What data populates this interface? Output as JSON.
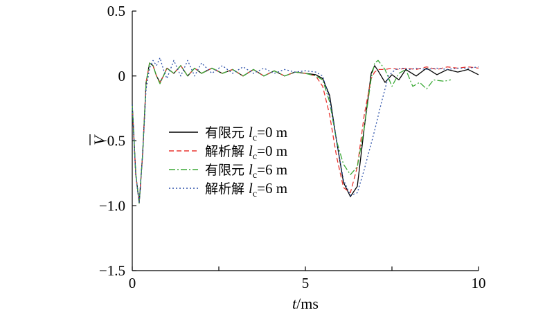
{
  "chart_data": {
    "type": "line",
    "xlabel_var": "t",
    "xlabel_unit": "/ms",
    "ylabel": "V",
    "xlim": [
      0,
      10
    ],
    "ylim": [
      -1.5,
      0.5
    ],
    "x_ticks": [
      0,
      5,
      10
    ],
    "x_tick_labels": [
      "0",
      "5",
      "10"
    ],
    "x_minor_ticks": [
      2.5,
      7.5
    ],
    "y_ticks": [
      0.5,
      0,
      -0.5,
      -1.0,
      -1.5
    ],
    "y_tick_labels": [
      "0.5",
      "0",
      "−0.5",
      "−1.0",
      "−1.5"
    ],
    "grid": false,
    "legend_position": "center",
    "series": [
      {
        "name": "有限元 lc=0 m",
        "legend_prefix": "有限元",
        "legend_var": "l",
        "legend_sub": "c",
        "legend_value": "=0 m",
        "color": "#000000",
        "dash": "",
        "x": [
          0,
          0.1,
          0.2,
          0.3,
          0.4,
          0.5,
          0.6,
          0.7,
          0.8,
          0.9,
          1.0,
          1.2,
          1.4,
          1.6,
          1.8,
          2.0,
          2.3,
          2.6,
          2.9,
          3.2,
          3.5,
          3.8,
          4.1,
          4.4,
          4.7,
          5.0,
          5.3,
          5.5,
          5.7,
          5.9,
          6.1,
          6.3,
          6.5,
          6.7,
          6.9,
          7.0,
          7.1,
          7.3,
          7.5,
          7.7,
          7.9,
          8.2,
          8.5,
          8.8,
          9.1,
          9.4,
          9.7,
          10.0
        ],
        "y": [
          -0.22,
          -0.75,
          -0.98,
          -0.6,
          -0.05,
          0.1,
          0.08,
          0.0,
          -0.05,
          0.0,
          0.06,
          0.02,
          0.08,
          0.0,
          0.06,
          0.02,
          0.06,
          0.02,
          0.05,
          0.0,
          0.05,
          0.0,
          0.04,
          0.0,
          0.03,
          0.02,
          0.01,
          -0.02,
          -0.15,
          -0.5,
          -0.82,
          -0.93,
          -0.85,
          -0.4,
          0.02,
          0.08,
          0.04,
          -0.05,
          0.01,
          -0.03,
          0.05,
          0.0,
          0.06,
          0.01,
          0.05,
          0.03,
          0.05,
          0.01
        ]
      },
      {
        "name": "解析解 lc=0 m",
        "legend_prefix": "解析解",
        "legend_var": "l",
        "legend_sub": "c",
        "legend_value": "=0 m",
        "color": "#e8342e",
        "dash": "7 4",
        "x": [
          0,
          0.1,
          0.2,
          0.3,
          0.4,
          0.5,
          0.6,
          0.7,
          0.8,
          0.9,
          1.0,
          1.2,
          1.4,
          1.6,
          1.8,
          2.0,
          2.3,
          2.6,
          2.9,
          3.2,
          3.5,
          3.8,
          4.1,
          4.4,
          4.7,
          5.0,
          5.3,
          5.5,
          5.7,
          5.9,
          6.1,
          6.3,
          6.5,
          6.7,
          6.9,
          7.0,
          7.1,
          7.3,
          7.5,
          7.7,
          7.9,
          8.2,
          8.5,
          8.8,
          9.1,
          9.4,
          9.7,
          10.0
        ],
        "y": [
          -0.22,
          -0.76,
          -0.98,
          -0.6,
          -0.05,
          0.1,
          0.08,
          0.0,
          -0.05,
          0.0,
          0.06,
          0.02,
          0.08,
          0.0,
          0.06,
          0.02,
          0.06,
          0.02,
          0.05,
          0.0,
          0.05,
          0.0,
          0.04,
          0.0,
          0.03,
          0.02,
          0.0,
          -0.08,
          -0.3,
          -0.62,
          -0.86,
          -0.9,
          -0.7,
          -0.3,
          -0.02,
          0.03,
          0.05,
          0.05,
          0.06,
          0.05,
          0.06,
          0.05,
          0.07,
          0.05,
          0.07,
          0.06,
          0.07,
          0.06
        ]
      },
      {
        "name": "有限元 lc=6 m",
        "legend_prefix": "有限元",
        "legend_var": "l",
        "legend_sub": "c",
        "legend_value": "=6 m",
        "color": "#3aa935",
        "dash": "9 3 2 3",
        "x": [
          0,
          0.1,
          0.2,
          0.3,
          0.4,
          0.5,
          0.6,
          0.7,
          0.8,
          0.9,
          1.0,
          1.2,
          1.4,
          1.6,
          1.8,
          2.0,
          2.3,
          2.6,
          2.9,
          3.2,
          3.5,
          3.8,
          4.1,
          4.4,
          4.7,
          5.0,
          5.3,
          5.5,
          5.7,
          5.9,
          6.1,
          6.3,
          6.5,
          6.7,
          6.9,
          7.0,
          7.1,
          7.3,
          7.5,
          7.7,
          7.9,
          8.1,
          8.3,
          8.5,
          8.7,
          9.0,
          9.2
        ],
        "y": [
          -0.22,
          -0.75,
          -0.98,
          -0.6,
          -0.05,
          0.1,
          0.08,
          0.0,
          -0.06,
          0.0,
          0.06,
          0.02,
          0.08,
          0.0,
          0.06,
          0.02,
          0.06,
          0.02,
          0.05,
          0.0,
          0.05,
          0.0,
          0.04,
          0.0,
          0.03,
          0.02,
          0.0,
          -0.03,
          -0.2,
          -0.5,
          -0.68,
          -0.76,
          -0.7,
          -0.4,
          -0.02,
          0.1,
          0.12,
          0.05,
          -0.08,
          0.02,
          0.05,
          -0.08,
          -0.05,
          -0.1,
          -0.03,
          -0.04,
          -0.03
        ]
      },
      {
        "name": "解析解 lc=6 m",
        "legend_prefix": "解析解",
        "legend_var": "l",
        "legend_sub": "c",
        "legend_value": "=6 m",
        "color": "#2a4fa8",
        "dash": "2 3",
        "x": [
          0,
          0.1,
          0.2,
          0.3,
          0.4,
          0.5,
          0.6,
          0.7,
          0.8,
          0.9,
          1.0,
          1.2,
          1.4,
          1.6,
          1.8,
          2.0,
          2.3,
          2.6,
          2.9,
          3.2,
          3.5,
          3.8,
          4.1,
          4.4,
          4.7,
          5.0,
          5.3,
          5.5,
          5.7,
          5.9,
          6.1,
          6.3,
          6.5,
          6.7,
          6.9,
          7.0,
          7.2,
          7.4,
          7.6,
          7.8,
          8.0,
          8.2,
          8.5,
          8.8,
          9.1,
          9.4,
          9.7,
          10.0
        ],
        "y": [
          -0.22,
          -0.76,
          -0.98,
          -0.6,
          -0.1,
          0.06,
          0.12,
          0.08,
          0.14,
          0.05,
          -0.02,
          0.12,
          0.0,
          0.12,
          0.0,
          0.1,
          0.02,
          0.08,
          0.02,
          0.07,
          0.02,
          0.06,
          0.02,
          0.05,
          0.03,
          0.04,
          0.03,
          0.0,
          -0.18,
          -0.5,
          -0.8,
          -0.92,
          -0.9,
          -0.72,
          -0.52,
          -0.42,
          -0.2,
          0.0,
          0.05,
          0.06,
          0.05,
          0.06,
          0.05,
          0.06,
          0.05,
          0.06,
          0.06,
          0.07
        ]
      }
    ]
  }
}
